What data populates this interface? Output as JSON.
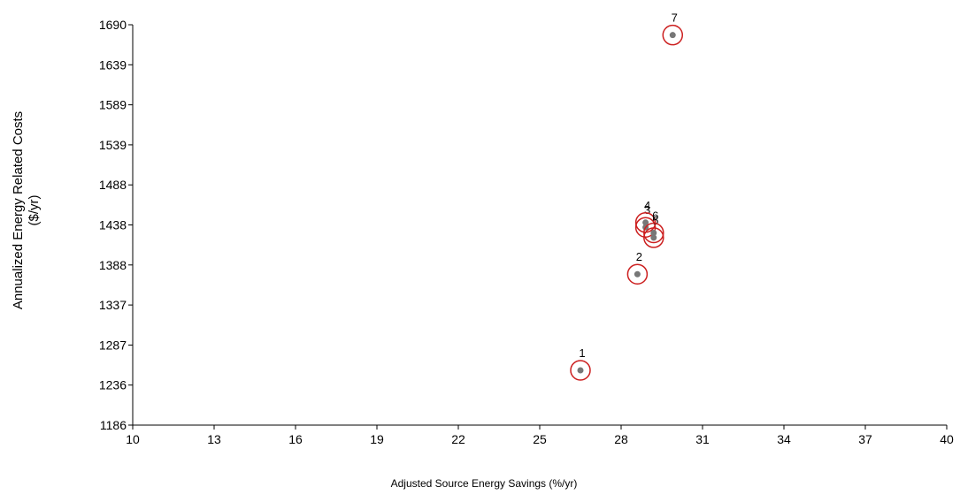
{
  "chart_data": {
    "type": "scatter",
    "title": "",
    "xlabel": "Adjusted Source Energy Savings (%/yr)",
    "ylabel_lines": [
      "Annualized Energy Related Costs",
      "($/yr)"
    ],
    "xlim": [
      10,
      40
    ],
    "ylim": [
      1186,
      1690
    ],
    "x_ticks": [
      "10",
      "13",
      "16",
      "19",
      "22",
      "25",
      "28",
      "31",
      "34",
      "37",
      "40"
    ],
    "y_ticks": [
      "1186",
      "1236",
      "1287",
      "1337",
      "1388",
      "1438",
      "1488",
      "1539",
      "1589",
      "1639",
      "1690"
    ],
    "grid": false,
    "points": [
      {
        "label": "1",
        "x": 26.5,
        "y": 1255
      },
      {
        "label": "2",
        "x": 28.6,
        "y": 1376
      },
      {
        "label": "3",
        "x": 28.9,
        "y": 1435
      },
      {
        "label": "4",
        "x": 28.9,
        "y": 1441
      },
      {
        "label": "5",
        "x": 29.2,
        "y": 1422
      },
      {
        "label": "6",
        "x": 29.2,
        "y": 1428
      },
      {
        "label": "7",
        "x": 29.9,
        "y": 1677
      }
    ],
    "colors": {
      "marker_ring": "#cc1f1f",
      "marker_dot": "#777777",
      "axis": "#000000"
    }
  }
}
